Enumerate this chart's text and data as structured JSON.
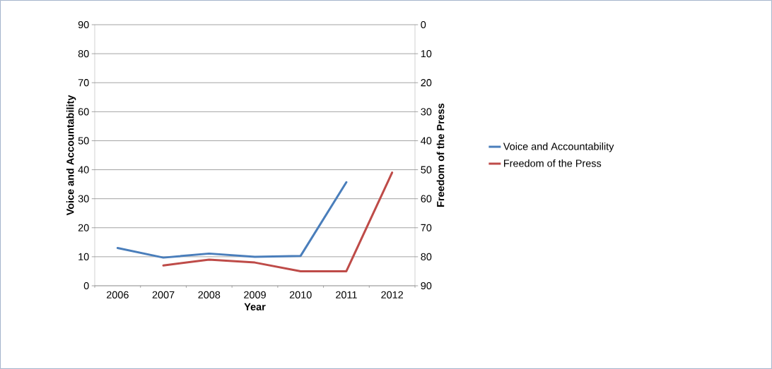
{
  "chart_data": {
    "type": "line",
    "xlabel": "Year",
    "ylabel": "Voice and Accountability",
    "y2label": "Freedom of the Press",
    "categories": [
      "2006",
      "2007",
      "2008",
      "2009",
      "2010",
      "2011",
      "2012"
    ],
    "series": [
      {
        "name": "Voice and Accountability",
        "color": "#4a7ebb",
        "values": [
          13,
          9.7,
          11.1,
          10,
          10.3,
          35.7,
          null
        ]
      },
      {
        "name": "Freedom of the Press",
        "color": "#be4b48",
        "axis": "y2",
        "values": [
          null,
          83,
          81,
          82,
          85,
          85,
          51
        ]
      }
    ],
    "ylim": [
      0,
      90
    ],
    "yticks": [
      0,
      10,
      20,
      30,
      40,
      50,
      60,
      70,
      80,
      90
    ],
    "y2lim": [
      90,
      0
    ],
    "y2ticks": [
      0,
      10,
      20,
      30,
      40,
      50,
      60,
      70,
      80,
      90
    ],
    "grid": "y",
    "legend": "right"
  }
}
